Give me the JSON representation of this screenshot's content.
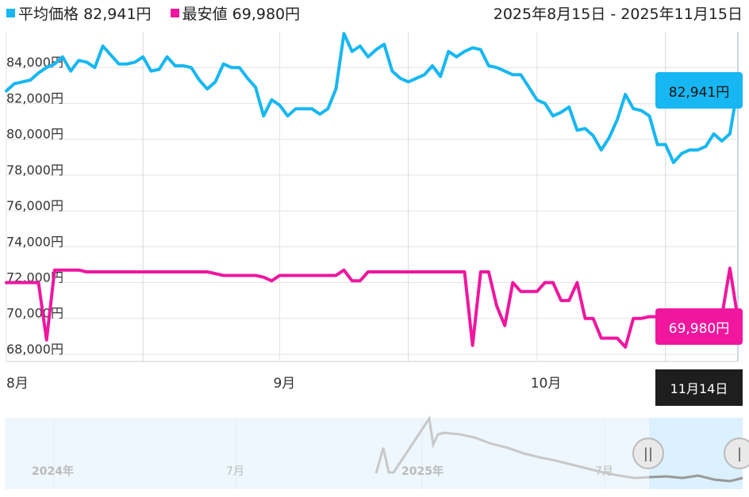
{
  "legend": {
    "avg_label": "平均価格",
    "avg_value": "82,941円",
    "min_label": "最安値",
    "min_value": "69,980円"
  },
  "range_text": "2025年8月15日 - 2025年11月15日",
  "badges": {
    "avg": "82,941円",
    "min": "69,980円",
    "date": "11月14日"
  },
  "colors": {
    "avg": "#16b7f2",
    "min": "#f0169e",
    "grid": "#e3e3e3",
    "nav_bg": "#eef7fd"
  },
  "navigator": {
    "labels": [
      "2024年",
      "7月",
      "2025年",
      "7月"
    ]
  },
  "chart_data": {
    "type": "line",
    "ylim": [
      67600,
      86000
    ],
    "y_ticks": [
      68000,
      70000,
      72000,
      74000,
      76000,
      78000,
      80000,
      82000,
      84000
    ],
    "y_tick_labels": [
      "68,000円",
      "70,000円",
      "72,000円",
      "74,000円",
      "76,000円",
      "78,000円",
      "80,000円",
      "82,000円",
      "84,000円"
    ],
    "x_ticks": [
      {
        "index": 0,
        "label": "8月"
      },
      {
        "index": 34,
        "label": "9月"
      },
      {
        "index": 66,
        "label": "10月"
      }
    ],
    "series": [
      {
        "name": "平均価格",
        "values": [
          82700,
          83100,
          83200,
          83300,
          83700,
          84000,
          84200,
          84600,
          83800,
          84400,
          84300,
          84000,
          85200,
          84700,
          84200,
          84200,
          84300,
          84600,
          83800,
          83900,
          84600,
          84100,
          84100,
          84000,
          83300,
          82800,
          83200,
          84200,
          84000,
          84000,
          83400,
          82900,
          81300,
          82200,
          81900,
          81300,
          81700,
          81700,
          81700,
          81400,
          81700,
          82800,
          85900,
          84900,
          85200,
          84600,
          85000,
          85300,
          83800,
          83400,
          83200,
          83400,
          83600,
          84100,
          83500,
          84900,
          84600,
          84900,
          85100,
          85000,
          84100,
          84000,
          83800,
          83600,
          83600,
          82900,
          82200,
          82000,
          81300,
          81500,
          81800,
          80500,
          80600,
          80200,
          79400,
          80100,
          81100,
          82500,
          81700,
          81600,
          81300,
          79700,
          79700,
          78700,
          79200,
          79400,
          79400,
          79600,
          80300,
          79900,
          80300,
          82941
        ]
      },
      {
        "name": "最安値",
        "values": [
          72000,
          72000,
          72000,
          72000,
          72000,
          68800,
          72700,
          72700,
          72700,
          72700,
          72600,
          72600,
          72600,
          72600,
          72600,
          72600,
          72600,
          72600,
          72600,
          72600,
          72600,
          72600,
          72600,
          72600,
          72600,
          72600,
          72500,
          72400,
          72400,
          72400,
          72400,
          72400,
          72300,
          72100,
          72400,
          72400,
          72400,
          72400,
          72400,
          72400,
          72400,
          72400,
          72700,
          72100,
          72100,
          72600,
          72600,
          72600,
          72600,
          72600,
          72600,
          72600,
          72600,
          72600,
          72600,
          72600,
          72600,
          72600,
          68500,
          72600,
          72600,
          70700,
          69600,
          72000,
          71500,
          71500,
          71500,
          72000,
          72000,
          71000,
          71000,
          72000,
          70000,
          70000,
          68900,
          68900,
          68900,
          68400,
          70000,
          70000,
          70100,
          70100,
          70100,
          70100,
          70100,
          70100,
          70100,
          70100,
          70100,
          70100,
          72800,
          69980
        ]
      }
    ]
  }
}
